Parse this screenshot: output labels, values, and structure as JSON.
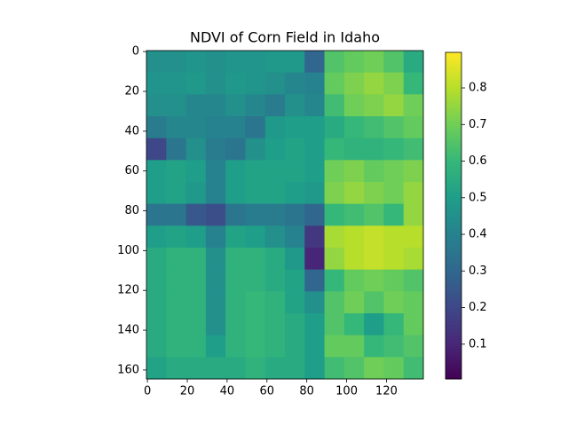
{
  "chart_data": {
    "type": "heatmap",
    "title": "NDVI of Corn Field in Idaho",
    "colormap": "viridis",
    "xlim": [
      -0.5,
      138.5
    ],
    "ylim": [
      164.5,
      -0.5
    ],
    "xticks": [
      0,
      20,
      40,
      60,
      80,
      100,
      120
    ],
    "yticks": [
      0,
      20,
      40,
      60,
      80,
      100,
      120,
      140,
      160
    ],
    "zlim": [
      0.005,
      0.897
    ],
    "zticks": [
      0.1,
      0.2,
      0.3,
      0.4,
      0.5,
      0.6,
      0.7,
      0.8
    ],
    "z": [
      [
        0.45,
        0.45,
        0.47,
        0.45,
        0.47,
        0.47,
        0.48,
        0.48,
        0.3,
        0.65,
        0.68,
        0.7,
        0.65,
        0.55
      ],
      [
        0.47,
        0.47,
        0.48,
        0.45,
        0.48,
        0.47,
        0.45,
        0.42,
        0.4,
        0.68,
        0.72,
        0.75,
        0.72,
        0.6
      ],
      [
        0.45,
        0.45,
        0.42,
        0.42,
        0.45,
        0.42,
        0.38,
        0.45,
        0.42,
        0.62,
        0.7,
        0.72,
        0.75,
        0.7
      ],
      [
        0.38,
        0.42,
        0.42,
        0.4,
        0.4,
        0.35,
        0.48,
        0.5,
        0.5,
        0.55,
        0.6,
        0.62,
        0.65,
        0.68
      ],
      [
        0.2,
        0.35,
        0.45,
        0.38,
        0.35,
        0.45,
        0.5,
        0.52,
        0.5,
        0.6,
        0.58,
        0.58,
        0.6,
        0.62
      ],
      [
        0.5,
        0.52,
        0.5,
        0.4,
        0.5,
        0.52,
        0.52,
        0.52,
        0.5,
        0.7,
        0.72,
        0.68,
        0.7,
        0.72
      ],
      [
        0.5,
        0.52,
        0.48,
        0.4,
        0.5,
        0.52,
        0.52,
        0.5,
        0.48,
        0.72,
        0.75,
        0.72,
        0.7,
        0.75
      ],
      [
        0.35,
        0.35,
        0.25,
        0.22,
        0.35,
        0.38,
        0.38,
        0.35,
        0.3,
        0.6,
        0.62,
        0.65,
        0.6,
        0.75
      ],
      [
        0.5,
        0.52,
        0.5,
        0.4,
        0.52,
        0.5,
        0.45,
        0.4,
        0.15,
        0.78,
        0.8,
        0.82,
        0.8,
        0.8
      ],
      [
        0.55,
        0.58,
        0.58,
        0.45,
        0.58,
        0.58,
        0.55,
        0.48,
        0.1,
        0.75,
        0.8,
        0.82,
        0.8,
        0.78
      ],
      [
        0.55,
        0.58,
        0.58,
        0.45,
        0.58,
        0.58,
        0.55,
        0.52,
        0.3,
        0.6,
        0.68,
        0.7,
        0.68,
        0.65
      ],
      [
        0.55,
        0.58,
        0.58,
        0.45,
        0.58,
        0.6,
        0.58,
        0.52,
        0.45,
        0.65,
        0.7,
        0.65,
        0.7,
        0.68
      ],
      [
        0.55,
        0.58,
        0.58,
        0.45,
        0.58,
        0.6,
        0.58,
        0.55,
        0.5,
        0.65,
        0.6,
        0.5,
        0.6,
        0.68
      ],
      [
        0.55,
        0.58,
        0.58,
        0.5,
        0.58,
        0.6,
        0.58,
        0.55,
        0.5,
        0.68,
        0.68,
        0.6,
        0.62,
        0.65
      ],
      [
        0.52,
        0.55,
        0.55,
        0.55,
        0.55,
        0.58,
        0.55,
        0.55,
        0.5,
        0.62,
        0.65,
        0.7,
        0.68,
        0.62
      ]
    ]
  }
}
